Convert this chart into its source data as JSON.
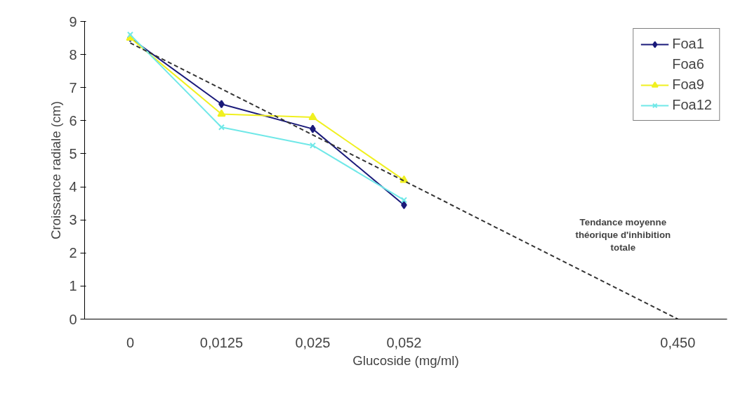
{
  "chart_data": {
    "type": "line",
    "xlabel": "Glucoside (mg/ml)",
    "ylabel": "Croissance radiale (cm)",
    "categories": [
      "0",
      "0,0125",
      "0,025",
      "0,052",
      null,
      null,
      "0,450"
    ],
    "series": [
      {
        "name": "Foa1",
        "color": "#1a1a7a",
        "marker": "diamond",
        "values": [
          8.5,
          6.5,
          5.75,
          3.45,
          null,
          null,
          null
        ]
      },
      {
        "name": "Foa6",
        "marker": "none",
        "values": [
          null,
          null,
          null,
          null,
          null,
          null,
          null
        ]
      },
      {
        "name": "Foa9",
        "color": "#f0f020",
        "marker": "triangle",
        "values": [
          8.5,
          6.2,
          6.1,
          4.2,
          null,
          null,
          null
        ]
      },
      {
        "name": "Foa12",
        "color": "#70e8e8",
        "marker": "cross",
        "values": [
          8.6,
          5.8,
          5.25,
          3.6,
          null,
          null,
          null
        ]
      },
      {
        "color": "#333333",
        "marker": "none",
        "line_style": "dashed",
        "values": [
          8.35,
          6.96,
          5.57,
          4.18,
          2.78,
          1.39,
          0
        ]
      }
    ],
    "ylim": [
      0,
      9
    ],
    "yticks": [
      0,
      1,
      2,
      3,
      4,
      5,
      6,
      7,
      8,
      9
    ],
    "grid": false,
    "legend": "top right",
    "annotations": [
      "Tendance moyenne théorique d'inhibition totale"
    ]
  }
}
